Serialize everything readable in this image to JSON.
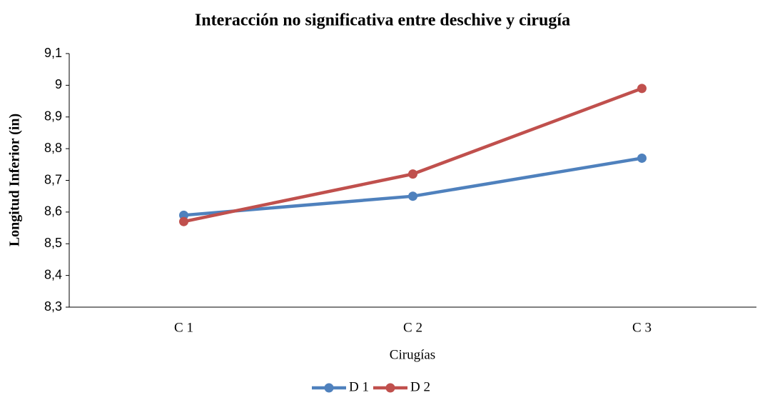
{
  "chart_data": {
    "type": "line",
    "title": "Interacción no significativa entre deschive y cirugía",
    "x_label": "Cirugías",
    "y_label": "Longitud Inferior (in)",
    "categories": [
      "C 1",
      "C 2",
      "C 3"
    ],
    "series": [
      {
        "name": "D 1",
        "color": "#4f81bd",
        "values": [
          8.59,
          8.65,
          8.77
        ]
      },
      {
        "name": "D 2",
        "color": "#c0504d",
        "values": [
          8.57,
          8.72,
          8.99
        ]
      }
    ],
    "ylim": [
      8.3,
      9.1
    ],
    "yticks": [
      {
        "value": 8.3,
        "label": "8,3"
      },
      {
        "value": 8.4,
        "label": "8,4"
      },
      {
        "value": 8.5,
        "label": "8,5"
      },
      {
        "value": 8.6,
        "label": "8,6"
      },
      {
        "value": 8.7,
        "label": "8,7"
      },
      {
        "value": 8.8,
        "label": "8,8"
      },
      {
        "value": 8.9,
        "label": "8,9"
      },
      9,
      {
        "value": 9.1,
        "label": "9,1"
      }
    ],
    "grid": false,
    "legend": "bottom"
  }
}
